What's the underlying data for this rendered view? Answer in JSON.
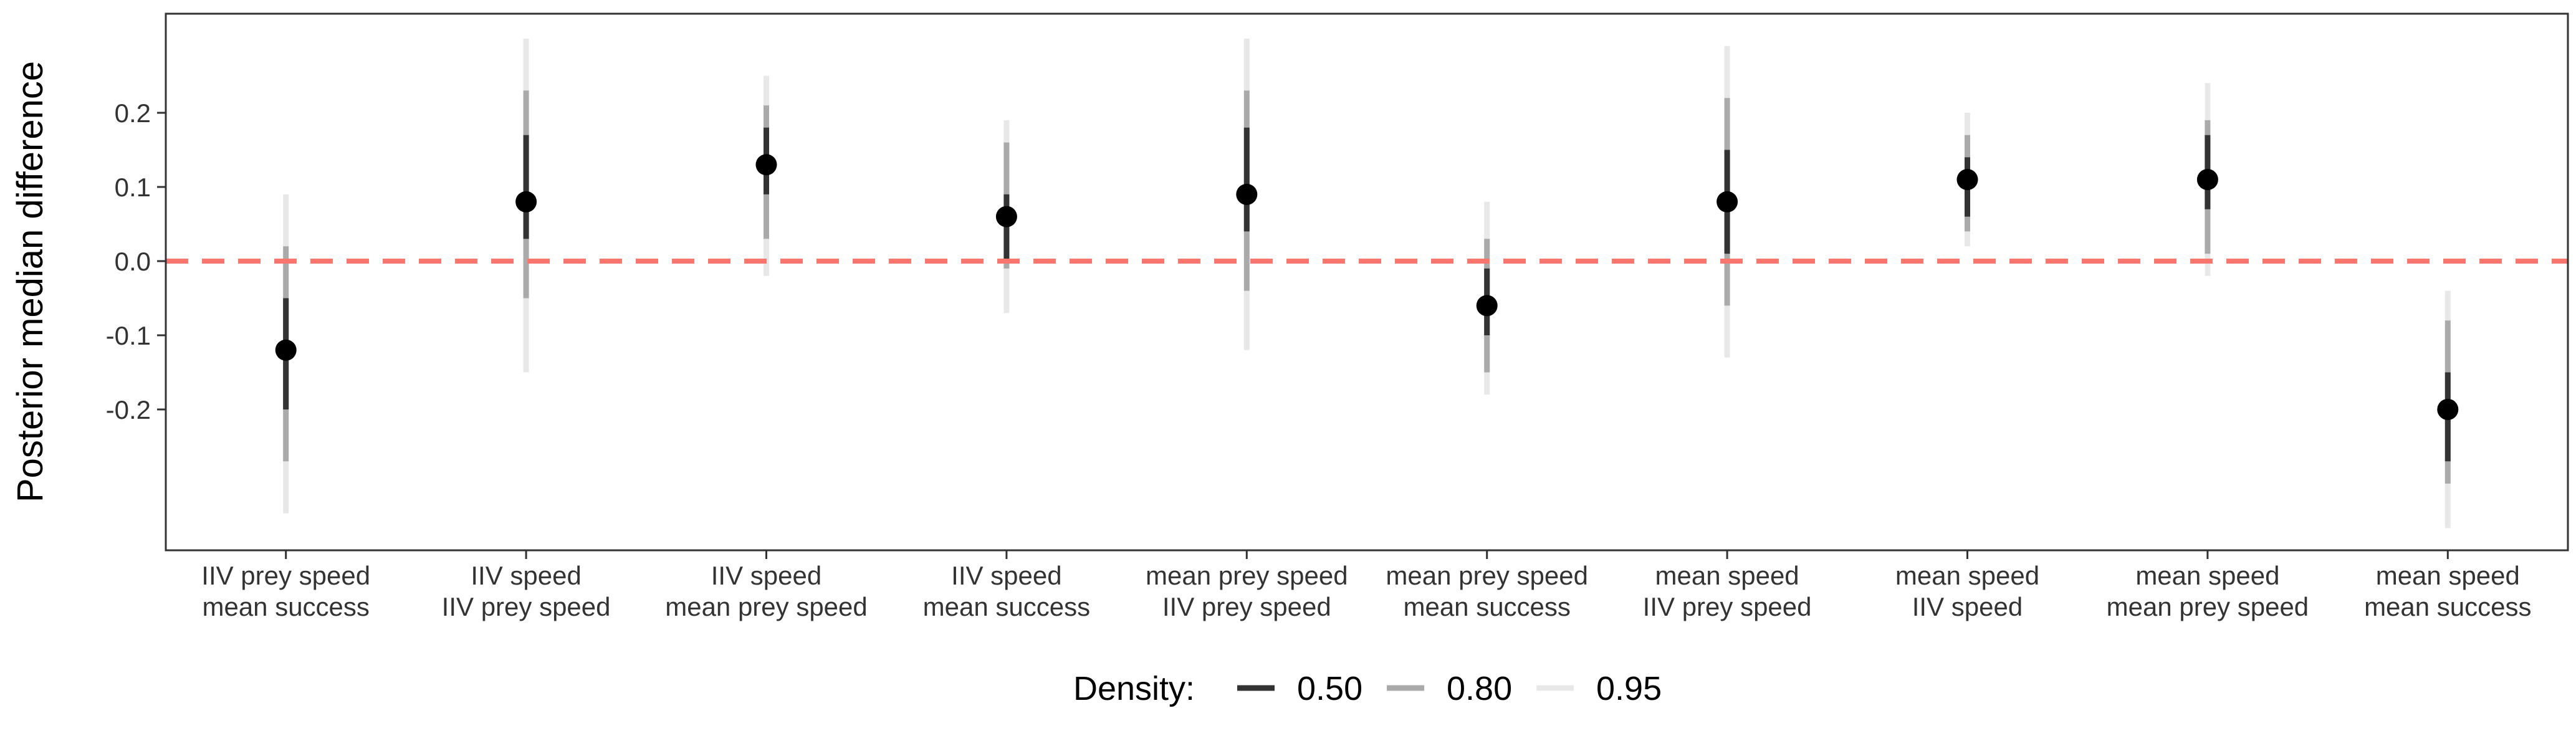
{
  "chart_data": {
    "type": "pointrange",
    "ylabel": "Posterior median difference",
    "xlabel": "",
    "ylim": [
      -0.33,
      0.33
    ],
    "y_ticks": [
      "0.2",
      "0.1",
      "0.0",
      "-0.1",
      "-0.2"
    ],
    "y_tick_values": [
      0.2,
      0.1,
      0.0,
      -0.1,
      -0.2
    ],
    "reference_line": {
      "y": 0.0,
      "style": "dashed",
      "color": "#f8766d"
    },
    "grid": false,
    "legend": {
      "position": "bottom",
      "title": "Density:",
      "entries": [
        "0.50",
        "0.80",
        "0.95"
      ]
    },
    "interval_colors": {
      "0.50": "#333333",
      "0.80": "#aaaaaa",
      "0.95": "#e8e8e8"
    },
    "point_color": "#000000",
    "categories": [
      {
        "line1": "IIV prey speed",
        "line2": "mean success"
      },
      {
        "line1": "IIV speed",
        "line2": "IIV prey speed"
      },
      {
        "line1": "IIV speed",
        "line2": "mean prey speed"
      },
      {
        "line1": "IIV speed",
        "line2": "mean success"
      },
      {
        "line1": "mean prey speed",
        "line2": "IIV prey speed"
      },
      {
        "line1": "mean prey speed",
        "line2": "mean success"
      },
      {
        "line1": "mean speed",
        "line2": "IIV prey speed"
      },
      {
        "line1": "mean speed",
        "line2": "IIV speed"
      },
      {
        "line1": "mean speed",
        "line2": "mean prey speed"
      },
      {
        "line1": "mean speed",
        "line2": "mean success"
      }
    ],
    "points": [
      {
        "median": -0.12,
        "ci50": [
          -0.2,
          -0.05
        ],
        "ci80": [
          -0.27,
          0.02
        ],
        "ci95": [
          -0.34,
          0.09
        ]
      },
      {
        "median": 0.08,
        "ci50": [
          0.03,
          0.17
        ],
        "ci80": [
          -0.05,
          0.23
        ],
        "ci95": [
          -0.15,
          0.3
        ]
      },
      {
        "median": 0.13,
        "ci50": [
          0.09,
          0.18
        ],
        "ci80": [
          0.03,
          0.21
        ],
        "ci95": [
          -0.02,
          0.25
        ]
      },
      {
        "median": 0.06,
        "ci50": [
          0.0,
          0.09
        ],
        "ci80": [
          -0.01,
          0.16
        ],
        "ci95": [
          -0.07,
          0.19
        ]
      },
      {
        "median": 0.09,
        "ci50": [
          0.04,
          0.18
        ],
        "ci80": [
          -0.04,
          0.23
        ],
        "ci95": [
          -0.12,
          0.3
        ]
      },
      {
        "median": -0.06,
        "ci50": [
          -0.1,
          -0.01
        ],
        "ci80": [
          -0.15,
          0.03
        ],
        "ci95": [
          -0.18,
          0.08
        ]
      },
      {
        "median": 0.08,
        "ci50": [
          0.01,
          0.15
        ],
        "ci80": [
          -0.06,
          0.22
        ],
        "ci95": [
          -0.13,
          0.29
        ]
      },
      {
        "median": 0.11,
        "ci50": [
          0.06,
          0.14
        ],
        "ci80": [
          0.04,
          0.17
        ],
        "ci95": [
          0.02,
          0.2
        ]
      },
      {
        "median": 0.11,
        "ci50": [
          0.07,
          0.17
        ],
        "ci80": [
          0.01,
          0.19
        ],
        "ci95": [
          -0.02,
          0.24
        ]
      },
      {
        "median": -0.2,
        "ci50": [
          -0.27,
          -0.15
        ],
        "ci80": [
          -0.3,
          -0.08
        ],
        "ci95": [
          -0.36,
          -0.04
        ]
      }
    ]
  }
}
